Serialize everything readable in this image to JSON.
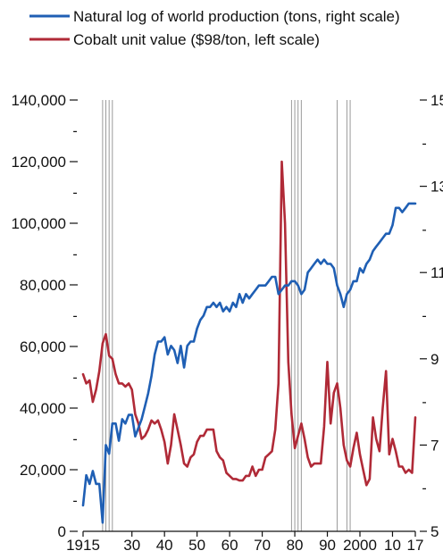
{
  "chart_data": {
    "type": "line",
    "title": "",
    "legend_position": "top",
    "x_axis": {
      "range": [
        1915,
        2017
      ],
      "tick_values": [
        1915,
        1930,
        1940,
        1950,
        1960,
        1970,
        1980,
        1990,
        2000,
        2010,
        2017
      ],
      "tick_labels": [
        "1915",
        "30",
        "40",
        "50",
        "60",
        "70",
        "80",
        "90",
        "2000",
        "10",
        "17"
      ]
    },
    "y_left": {
      "range": [
        0,
        140000
      ],
      "major_ticks": [
        0,
        20000,
        40000,
        60000,
        80000,
        100000,
        120000,
        140000
      ],
      "major_labels": [
        "0",
        "20,000",
        "40,000",
        "60,000",
        "80,000",
        "100,000",
        "120,000",
        "140,000"
      ],
      "minor_ticks": [
        10000,
        30000,
        50000,
        70000,
        90000,
        110000,
        130000
      ]
    },
    "y_right": {
      "range": [
        5,
        15
      ],
      "major_ticks": [
        5,
        7,
        9,
        11,
        13,
        15
      ],
      "major_labels": [
        "5",
        "7",
        "9",
        "11",
        "13",
        "15"
      ],
      "minor_ticks": [
        6,
        8,
        10,
        12,
        14
      ]
    },
    "minor_tick_glyph": "-",
    "event_lines": [
      1921,
      1922,
      1923,
      1924,
      1979,
      1980,
      1981,
      1982,
      1993,
      1996,
      1997
    ],
    "event_line_color": "#9a9a9a",
    "series": [
      {
        "name": "Natural log of world production (tons, right scale)",
        "axis": "right",
        "color": "#1f5fb4",
        "x": [
          1915,
          1916,
          1917,
          1918,
          1919,
          1920,
          1921,
          1922,
          1923,
          1924,
          1925,
          1926,
          1927,
          1928,
          1929,
          1930,
          1931,
          1932,
          1933,
          1934,
          1935,
          1936,
          1937,
          1938,
          1939,
          1940,
          1941,
          1942,
          1943,
          1944,
          1945,
          1946,
          1947,
          1948,
          1949,
          1950,
          1951,
          1952,
          1953,
          1954,
          1955,
          1956,
          1957,
          1958,
          1959,
          1960,
          1961,
          1962,
          1963,
          1964,
          1965,
          1966,
          1967,
          1968,
          1969,
          1970,
          1971,
          1972,
          1973,
          1974,
          1975,
          1976,
          1977,
          1978,
          1979,
          1980,
          1981,
          1982,
          1983,
          1984,
          1985,
          1986,
          1987,
          1988,
          1989,
          1990,
          1991,
          1992,
          1993,
          1994,
          1995,
          1996,
          1997,
          1998,
          1999,
          2000,
          2001,
          2002,
          2003,
          2004,
          2005,
          2006,
          2007,
          2008,
          2009,
          2010,
          2011,
          2012,
          2013,
          2014,
          2015,
          2016,
          2017
        ],
        "values": [
          5.6,
          6.3,
          6.1,
          6.4,
          6.1,
          6.1,
          5.2,
          7.0,
          6.8,
          7.5,
          7.5,
          7.1,
          7.6,
          7.5,
          7.7,
          7.7,
          7.2,
          7.4,
          7.6,
          7.9,
          8.2,
          8.6,
          9.1,
          9.4,
          9.4,
          9.5,
          9.1,
          9.3,
          9.2,
          8.9,
          9.3,
          8.8,
          9.3,
          9.4,
          9.4,
          9.7,
          9.9,
          10.0,
          10.2,
          10.2,
          10.3,
          10.2,
          10.3,
          10.1,
          10.2,
          10.1,
          10.3,
          10.2,
          10.5,
          10.3,
          10.5,
          10.4,
          10.5,
          10.6,
          10.7,
          10.7,
          10.7,
          10.8,
          10.9,
          10.9,
          10.5,
          10.6,
          10.7,
          10.7,
          10.8,
          10.8,
          10.7,
          10.5,
          10.6,
          11.0,
          11.1,
          11.2,
          11.3,
          11.2,
          11.3,
          11.2,
          11.2,
          11.1,
          10.7,
          10.5,
          10.2,
          10.5,
          10.6,
          10.8,
          10.8,
          11.1,
          11.0,
          11.2,
          11.3,
          11.5,
          11.6,
          11.7,
          11.8,
          11.9,
          11.9,
          12.1,
          12.5,
          12.5,
          12.4,
          12.5,
          12.6,
          12.6,
          12.6
        ]
      },
      {
        "name": "Cobalt unit value ($98/ton, left scale)",
        "axis": "left",
        "color": "#b02a37",
        "x": [
          1915,
          1916,
          1917,
          1918,
          1919,
          1920,
          1921,
          1922,
          1923,
          1924,
          1925,
          1926,
          1927,
          1928,
          1929,
          1930,
          1931,
          1932,
          1933,
          1934,
          1935,
          1936,
          1937,
          1938,
          1939,
          1940,
          1941,
          1942,
          1943,
          1944,
          1945,
          1946,
          1947,
          1948,
          1949,
          1950,
          1951,
          1952,
          1953,
          1954,
          1955,
          1956,
          1957,
          1958,
          1959,
          1960,
          1961,
          1962,
          1963,
          1964,
          1965,
          1966,
          1967,
          1968,
          1969,
          1970,
          1971,
          1972,
          1973,
          1974,
          1975,
          1976,
          1977,
          1978,
          1979,
          1980,
          1981,
          1982,
          1983,
          1984,
          1985,
          1986,
          1987,
          1988,
          1989,
          1990,
          1991,
          1992,
          1993,
          1994,
          1995,
          1996,
          1997,
          1998,
          1999,
          2000,
          2001,
          2002,
          2003,
          2004,
          2005,
          2006,
          2007,
          2008,
          2009,
          2010,
          2011,
          2012,
          2013,
          2014,
          2015,
          2016,
          2017
        ],
        "values": [
          51000,
          48000,
          49000,
          42000,
          46000,
          52000,
          61000,
          64000,
          57000,
          56000,
          51000,
          48000,
          48000,
          47000,
          48000,
          46000,
          38000,
          35000,
          30000,
          31000,
          33000,
          36000,
          35000,
          36000,
          33000,
          29000,
          22000,
          28000,
          38000,
          33000,
          28000,
          22000,
          21000,
          24000,
          25000,
          29000,
          31000,
          31000,
          33000,
          33000,
          33000,
          26000,
          24000,
          23000,
          19000,
          18000,
          17000,
          17000,
          16500,
          16500,
          18000,
          18000,
          21000,
          18000,
          20000,
          20000,
          24000,
          25000,
          26000,
          33000,
          48000,
          120000,
          100000,
          55000,
          38000,
          27000,
          31000,
          35000,
          30000,
          24000,
          21000,
          22000,
          22000,
          22000,
          34000,
          55000,
          35000,
          45000,
          48000,
          40000,
          28000,
          23000,
          21000,
          27000,
          32000,
          25000,
          20000,
          15000,
          17000,
          37000,
          30000,
          26000,
          40000,
          52000,
          25000,
          30000,
          26000,
          21000,
          21000,
          19000,
          20000,
          19000,
          37000
        ]
      }
    ]
  }
}
